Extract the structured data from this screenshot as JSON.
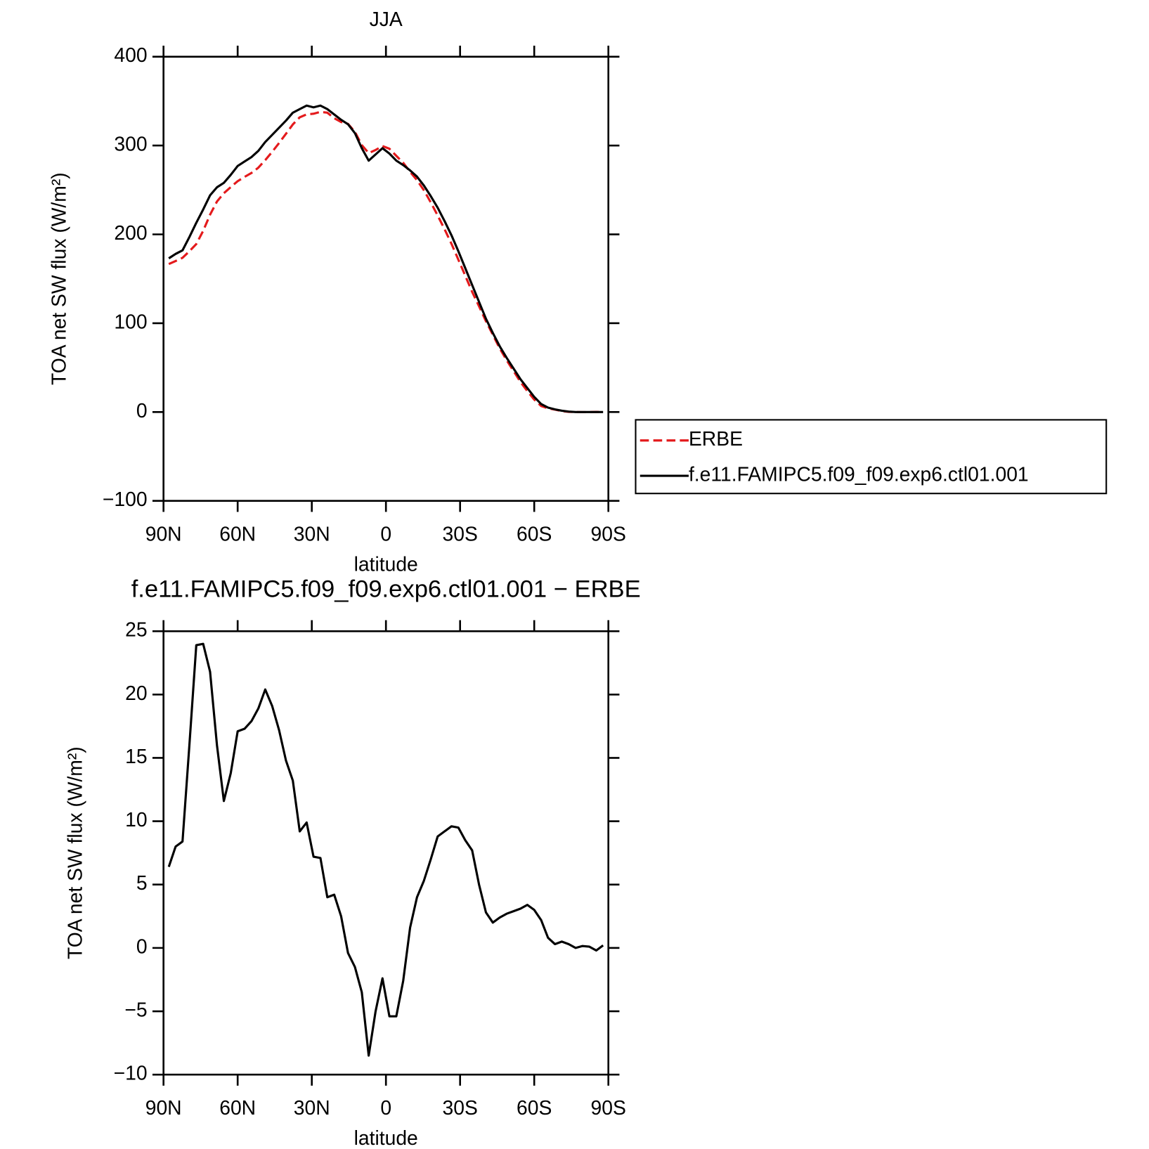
{
  "chart_data": [
    {
      "type": "line",
      "title": "JJA",
      "xlabel": "latitude",
      "ylabel": "TOA net SW flux (W/m²)",
      "x": [
        87.86,
        85.1,
        82.31,
        79.53,
        76.74,
        73.95,
        71.16,
        68.37,
        65.58,
        62.79,
        60.0,
        57.21,
        54.42,
        51.63,
        48.84,
        46.04,
        43.25,
        40.46,
        37.67,
        34.88,
        32.09,
        29.3,
        26.51,
        23.72,
        20.93,
        18.14,
        15.35,
        12.56,
        9.77,
        6.98,
        4.19,
        1.4,
        -1.4,
        -4.19,
        -6.98,
        -9.77,
        -12.56,
        -15.35,
        -18.14,
        -20.93,
        -23.72,
        -26.51,
        -29.3,
        -32.09,
        -34.88,
        -37.67,
        -40.46,
        -43.25,
        -46.04,
        -48.84,
        -51.63,
        -54.42,
        -57.21,
        -60.0,
        -62.79,
        -65.58,
        -68.37,
        -71.16,
        -73.95,
        -76.74,
        -79.53,
        -82.31,
        -85.1,
        -87.86
      ],
      "series": [
        {
          "name": "ERBE",
          "color": "#e41a1c",
          "linestyle": "dashed",
          "values": [
            166.6,
            170,
            173.6,
            181,
            189.1,
            204,
            222.2,
            237,
            246.4,
            253.2,
            259.9,
            264.7,
            269.1,
            275.1,
            283.6,
            292.9,
            302.8,
            313.2,
            323.8,
            331.8,
            335.1,
            335.8,
            337.9,
            337,
            330.8,
            326.5,
            324.4,
            315.5,
            300.5,
            291.5,
            295,
            299.4,
            296.4,
            288.4,
            280.6,
            270.4,
            261,
            249.7,
            236,
            221.2,
            205.8,
            189.4,
            171.5,
            153.5,
            135.3,
            119,
            102.2,
            87,
            71.6,
            58.3,
            46.1,
            33.9,
            23.6,
            14,
            6.8,
            4.2,
            2.7,
            1,
            0.2,
            0,
            -0.15,
            -0.1,
            0.2,
            -0.2
          ]
        },
        {
          "name": "f.e11.FAMIPC5.f09_f09.exp6.ctl01.001",
          "color": "#000000",
          "linestyle": "solid",
          "values": [
            173,
            178,
            182,
            197,
            213,
            228,
            244,
            253,
            258,
            267,
            277,
            282,
            287,
            294,
            304,
            312,
            320,
            328,
            337,
            341,
            345,
            343,
            345,
            341,
            335,
            329,
            324,
            314,
            297,
            283,
            290,
            297,
            291,
            283,
            278,
            272,
            265,
            255,
            243,
            230,
            215,
            199,
            181,
            162,
            143,
            124,
            105,
            89,
            74,
            61,
            49,
            37,
            27,
            17,
            9,
            5,
            3,
            1.5,
            0.5,
            0,
            0,
            0,
            0,
            0
          ]
        }
      ],
      "xlim": [
        90,
        -90
      ],
      "xticks": [
        {
          "value": 90,
          "label": "90N"
        },
        {
          "value": 60,
          "label": "60N"
        },
        {
          "value": 30,
          "label": "30N"
        },
        0,
        {
          "value": -30,
          "label": "30S"
        },
        {
          "value": -60,
          "label": "60S"
        },
        {
          "value": -90,
          "label": "90S"
        }
      ],
      "ylim": [
        -100,
        400
      ],
      "yticks": [
        {
          "value": -100,
          "label": "−100"
        },
        0,
        100,
        200,
        300,
        400
      ],
      "legend": "right"
    },
    {
      "type": "line",
      "title": "f.e11.FAMIPC5.f09_f09.exp6.ctl01.001 − ERBE",
      "xlabel": "latitude",
      "ylabel": "TOA net SW flux (W/m²)",
      "x": [
        87.86,
        85.1,
        82.31,
        79.53,
        76.74,
        73.95,
        71.16,
        68.37,
        65.58,
        62.79,
        60.0,
        57.21,
        54.42,
        51.63,
        48.84,
        46.04,
        43.25,
        40.46,
        37.67,
        34.88,
        32.09,
        29.3,
        26.51,
        23.72,
        20.93,
        18.14,
        15.35,
        12.56,
        9.77,
        6.98,
        4.19,
        1.4,
        -1.4,
        -4.19,
        -6.98,
        -9.77,
        -12.56,
        -15.35,
        -18.14,
        -20.93,
        -23.72,
        -26.51,
        -29.3,
        -32.09,
        -34.88,
        -37.67,
        -40.46,
        -43.25,
        -46.04,
        -48.84,
        -51.63,
        -54.42,
        -57.21,
        -60.0,
        -62.79,
        -65.58,
        -68.37,
        -71.16,
        -73.95,
        -76.74,
        -79.53,
        -82.31,
        -85.1,
        -87.86
      ],
      "series": [
        {
          "color": "#000000",
          "linestyle": "solid",
          "values": [
            6.4,
            8.0,
            8.4,
            16,
            23.9,
            24.0,
            21.8,
            16,
            11.6,
            13.8,
            17.1,
            17.3,
            17.9,
            18.9,
            20.4,
            19.1,
            17.2,
            14.8,
            13.2,
            9.2,
            9.9,
            7.2,
            7.1,
            4.0,
            4.2,
            2.5,
            -0.4,
            -1.5,
            -3.5,
            -8.5,
            -5.0,
            -2.4,
            -5.4,
            -5.4,
            -2.6,
            1.6,
            4.0,
            5.3,
            7.0,
            8.8,
            9.2,
            9.6,
            9.5,
            8.5,
            7.7,
            5.0,
            2.8,
            2.0,
            2.4,
            2.7,
            2.9,
            3.1,
            3.4,
            3.0,
            2.2,
            0.8,
            0.3,
            0.5,
            0.3,
            0.0,
            0.15,
            0.1,
            -0.2,
            0.2
          ]
        }
      ],
      "xlim": [
        90,
        -90
      ],
      "xticks": [
        {
          "value": 90,
          "label": "90N"
        },
        {
          "value": 60,
          "label": "60N"
        },
        {
          "value": 30,
          "label": "30N"
        },
        0,
        {
          "value": -30,
          "label": "30S"
        },
        {
          "value": -60,
          "label": "60S"
        },
        {
          "value": -90,
          "label": "90S"
        }
      ],
      "ylim": [
        -10,
        25
      ],
      "yticks": [
        {
          "value": -10,
          "label": "−10"
        },
        {
          "value": -5,
          "label": "−5"
        },
        0,
        5,
        10,
        15,
        20,
        25
      ]
    }
  ]
}
